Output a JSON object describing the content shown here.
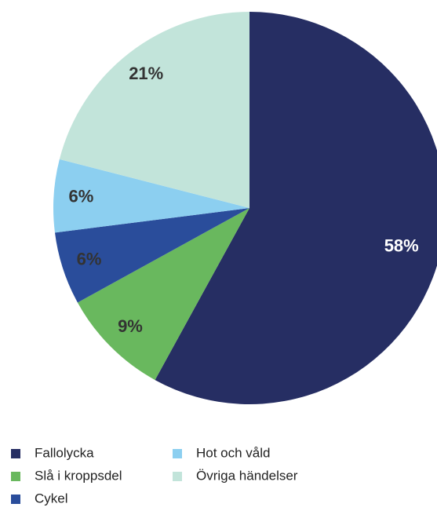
{
  "chart_data": {
    "type": "pie",
    "categories": [
      "Fallolycka",
      "Slå i kroppsdel",
      "Cykel",
      "Hot och våld",
      "Övriga händelser"
    ],
    "values": [
      58,
      9,
      6,
      6,
      21
    ],
    "value_labels": [
      "58%",
      "9%",
      "6%",
      "6%",
      "21%"
    ],
    "colors": [
      "#262e63",
      "#69b85e",
      "#2a4d9b",
      "#8ccff0",
      "#c2e4da"
    ]
  }
}
